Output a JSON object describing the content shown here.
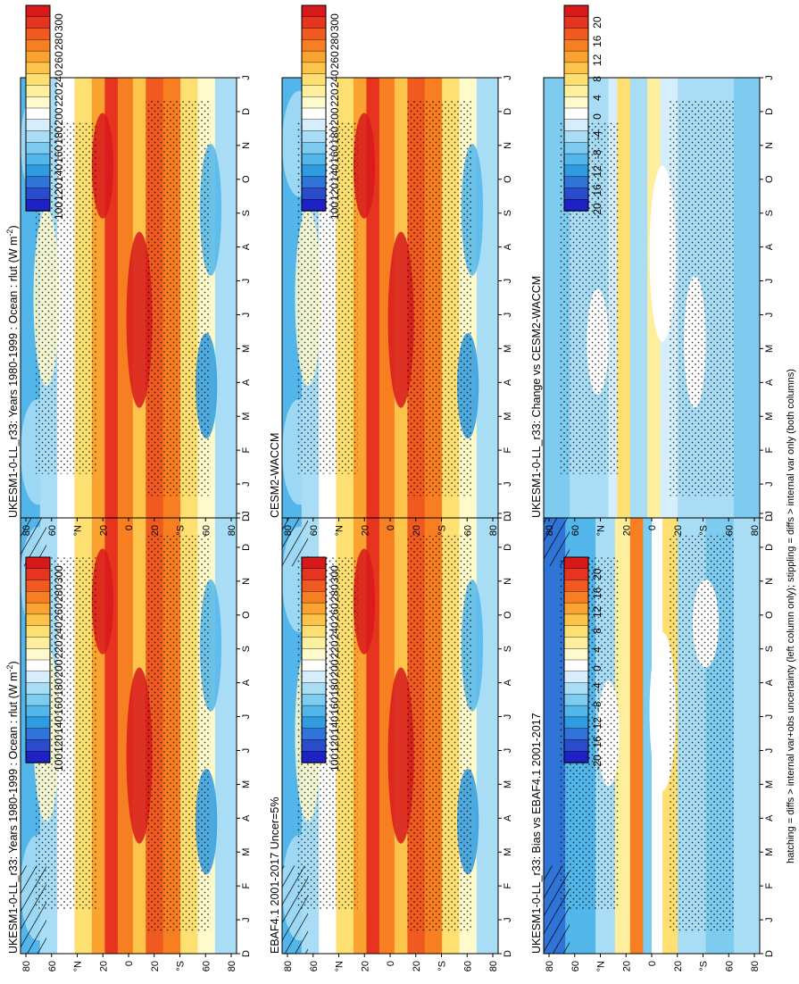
{
  "figure": {
    "footnote": "hatching = diffs > internal var+obs uncertainty (left column only); stippling = diffs > internal var only (both columns)"
  },
  "chart_data": [
    {
      "type": "heatmap",
      "panel": "left-top",
      "title": "UKESM1-0-LL_r33: Years 1980-1999 : Ocean : rlut (W m",
      "title_sup": "-2",
      "title_end": ")",
      "x_ticks": [
        "D",
        "J",
        "F",
        "M",
        "A",
        "M",
        "J",
        "J",
        "A",
        "S",
        "O",
        "N",
        "D",
        "J"
      ],
      "y_ticks": [
        "80",
        "60",
        "°N",
        "20",
        "0",
        "20",
        "°S",
        "60",
        "80"
      ],
      "hatching": true
    },
    {
      "type": "heatmap",
      "panel": "right-top",
      "title": "UKESM1-0-LL_r33: Years 1980-1999 : Ocean : rlut (W m",
      "title_sup": "-2",
      "title_end": ")",
      "x_ticks": [
        "D",
        "J",
        "F",
        "M",
        "A",
        "M",
        "J",
        "J",
        "A",
        "S",
        "O",
        "N",
        "D",
        "J"
      ],
      "y_ticks": [
        "80",
        "60",
        "°N",
        "20",
        "0",
        "20",
        "°S",
        "60",
        "80"
      ],
      "hatching": false
    },
    {
      "type": "heatmap",
      "panel": "left-middle",
      "title": "EBAF4.1 2001-2017 Uncer=5%",
      "x_ticks": [
        "D",
        "J",
        "F",
        "M",
        "A",
        "M",
        "J",
        "J",
        "A",
        "S",
        "O",
        "N",
        "D",
        "J"
      ],
      "y_ticks": [
        "80",
        "60",
        "°N",
        "20",
        "0",
        "20",
        "°S",
        "60",
        "80"
      ],
      "hatching": true
    },
    {
      "type": "heatmap",
      "panel": "right-middle",
      "title": "CESM2-WACCM",
      "x_ticks": [
        "D",
        "J",
        "F",
        "M",
        "A",
        "M",
        "J",
        "J",
        "A",
        "S",
        "O",
        "N",
        "D",
        "J"
      ],
      "y_ticks": [
        "80",
        "60",
        "°N",
        "20",
        "0",
        "20",
        "°S",
        "60",
        "80"
      ],
      "hatching": false
    },
    {
      "type": "heatmap",
      "panel": "left-bottom",
      "title": "UKESM1-0-LL_r33: Bias vs EBAF4.1 2001-2017",
      "x_ticks": [
        "D",
        "J",
        "F",
        "M",
        "A",
        "M",
        "J",
        "J",
        "A",
        "S",
        "O",
        "N",
        "D",
        "J"
      ],
      "y_ticks": [
        "80",
        "60",
        "°N",
        "20",
        "0",
        "20",
        "°S",
        "60",
        "80"
      ],
      "hatching": true
    },
    {
      "type": "heatmap",
      "panel": "right-bottom",
      "title": "UKESM1-0-LL_r33: Change vs CESM2-WACCM",
      "x_ticks": [
        "D",
        "J",
        "F",
        "M",
        "A",
        "M",
        "J",
        "J",
        "A",
        "S",
        "O",
        "N",
        "D",
        "J"
      ],
      "y_ticks": [
        "80",
        "60",
        "°N",
        "20",
        "0",
        "20",
        "°S",
        "60",
        "80"
      ],
      "hatching": false
    }
  ],
  "colorbars": {
    "absolute": {
      "labels": [
        "300",
        "280",
        "260",
        "240",
        "220",
        "200",
        "180",
        "160",
        "140",
        "120",
        "100"
      ],
      "colors": [
        "#d7191c",
        "#e6341f",
        "#f05a20",
        "#f77f22",
        "#fba330",
        "#fdc44b",
        "#fddf72",
        "#feef9e",
        "#fffacc",
        "#ffffff",
        "#d6eefb",
        "#a9ddf5",
        "#7dcbef",
        "#52b6ea",
        "#2f9be0",
        "#2f74d6",
        "#2a4ccc",
        "#1e22c4"
      ]
    },
    "difference": {
      "labels": [
        "20",
        "16",
        "12",
        "8",
        "4",
        "0",
        "-4",
        "-8",
        "-12",
        "-16",
        "-20"
      ],
      "colors": [
        "#d7191c",
        "#e6341f",
        "#f05a20",
        "#f77f22",
        "#fba330",
        "#fdc44b",
        "#fddf72",
        "#feef9e",
        "#fffacc",
        "#ffffff",
        "#d6eefb",
        "#a9ddf5",
        "#7dcbef",
        "#52b6ea",
        "#2f9be0",
        "#2f74d6",
        "#2a4ccc",
        "#1e22c4"
      ]
    }
  }
}
